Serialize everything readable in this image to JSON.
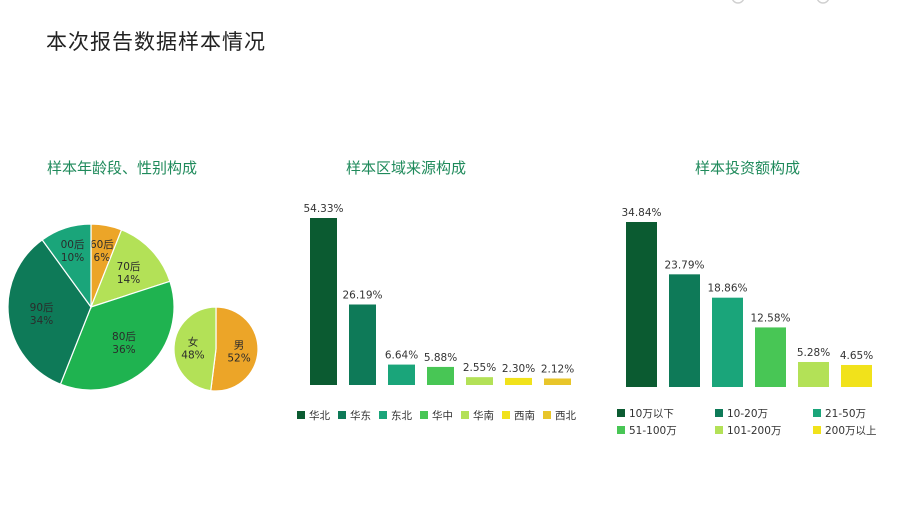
{
  "page": {
    "title": "本次报告数据样本情况"
  },
  "colors": {
    "dark_green": "#0b5b31",
    "teal_green": "#0e7a58",
    "teal": "#1aa57a",
    "green": "#1fb350",
    "mid_green": "#48c655",
    "light_green": "#b3e157",
    "yellow": "#f1e21b",
    "mustard": "#e8c52a",
    "orange": "#eca528"
  },
  "chart_data": [
    {
      "type": "pie",
      "title": "样本年龄段、性别构成",
      "slices": [
        {
          "label": "60后",
          "value": 6,
          "display": "6%"
        },
        {
          "label": "70后",
          "value": 14,
          "display": "14%"
        },
        {
          "label": "80后",
          "value": 36,
          "display": "36%"
        },
        {
          "label": "90后",
          "value": 34,
          "display": "34%"
        },
        {
          "label": "00后",
          "value": 10,
          "display": "10%"
        }
      ]
    },
    {
      "type": "pie",
      "title": "",
      "slices": [
        {
          "label": "男",
          "value": 52,
          "display": "52%"
        },
        {
          "label": "女",
          "value": 48,
          "display": "48%"
        }
      ]
    },
    {
      "type": "bar",
      "title": "样本区域来源构成",
      "categories": [
        "华北",
        "华东",
        "东北",
        "华中",
        "华南",
        "西南",
        "西北"
      ],
      "values": [
        54.33,
        26.19,
        6.64,
        5.88,
        2.55,
        2.3,
        2.12
      ],
      "value_labels": [
        "54.33%",
        "26.19%",
        "6.64%",
        "5.88%",
        "2.55%",
        "2.30%",
        "2.12%"
      ],
      "legend": "bottom"
    },
    {
      "type": "bar",
      "title": "样本投资额构成",
      "categories": [
        "10万以下",
        "10-20万",
        "21-50万",
        "51-100万",
        "101-200万",
        "200万以上"
      ],
      "values": [
        34.84,
        23.79,
        18.86,
        12.58,
        5.28,
        4.65
      ],
      "value_labels": [
        "34.84%",
        "23.79%",
        "18.86%",
        "12.58%",
        "5.28%",
        "4.65%"
      ],
      "legend": "bottom"
    }
  ]
}
